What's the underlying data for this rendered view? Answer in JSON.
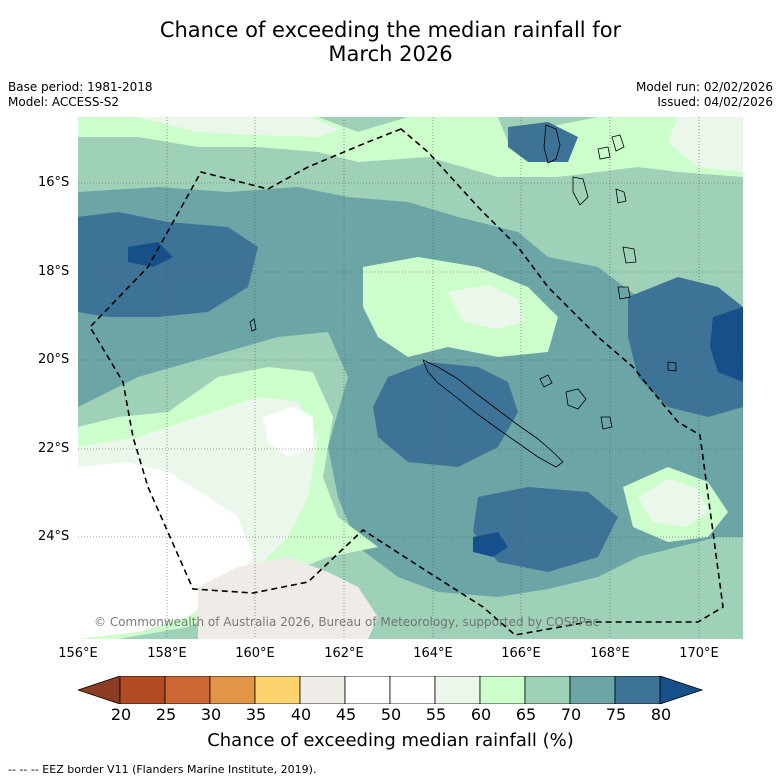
{
  "title_line1": "Chance of exceeding the median rainfall for",
  "title_line2": "March 2026",
  "meta_left": [
    "Base period: 1981-2018",
    "Model: ACCESS-S2"
  ],
  "meta_right": [
    "Model run: 02/02/2026",
    "Issued: 04/02/2026"
  ],
  "copyright": "© Commonwealth of Australia 2026, Bureau of Meteorology, supported by COSPPac",
  "lat_labels": [
    "16°S",
    "18°S",
    "20°S",
    "22°S",
    "24°S"
  ],
  "lon_labels": [
    "156°E",
    "158°E",
    "160°E",
    "162°E",
    "164°E",
    "166°E",
    "168°E",
    "170°E"
  ],
  "colorbar": {
    "ticks": [
      "20",
      "25",
      "30",
      "35",
      "40",
      "45",
      "50",
      "55",
      "60",
      "65",
      "70",
      "75",
      "80"
    ],
    "colors": [
      "#8c3b24",
      "#b24a24",
      "#cc6633",
      "#e19548",
      "#fdd36e",
      "#efebe6",
      "#ffffff",
      "#ffffff",
      "#ecf7ec",
      "#ccffcc",
      "#9fd1b9",
      "#6ba5a5",
      "#3d7396",
      "#16508a"
    ],
    "label": "Chance of exceeding median rainfall (%)"
  },
  "footnote": "--  --  -- EEZ border V11 (Flanders Marine Institute, 2019)."
}
